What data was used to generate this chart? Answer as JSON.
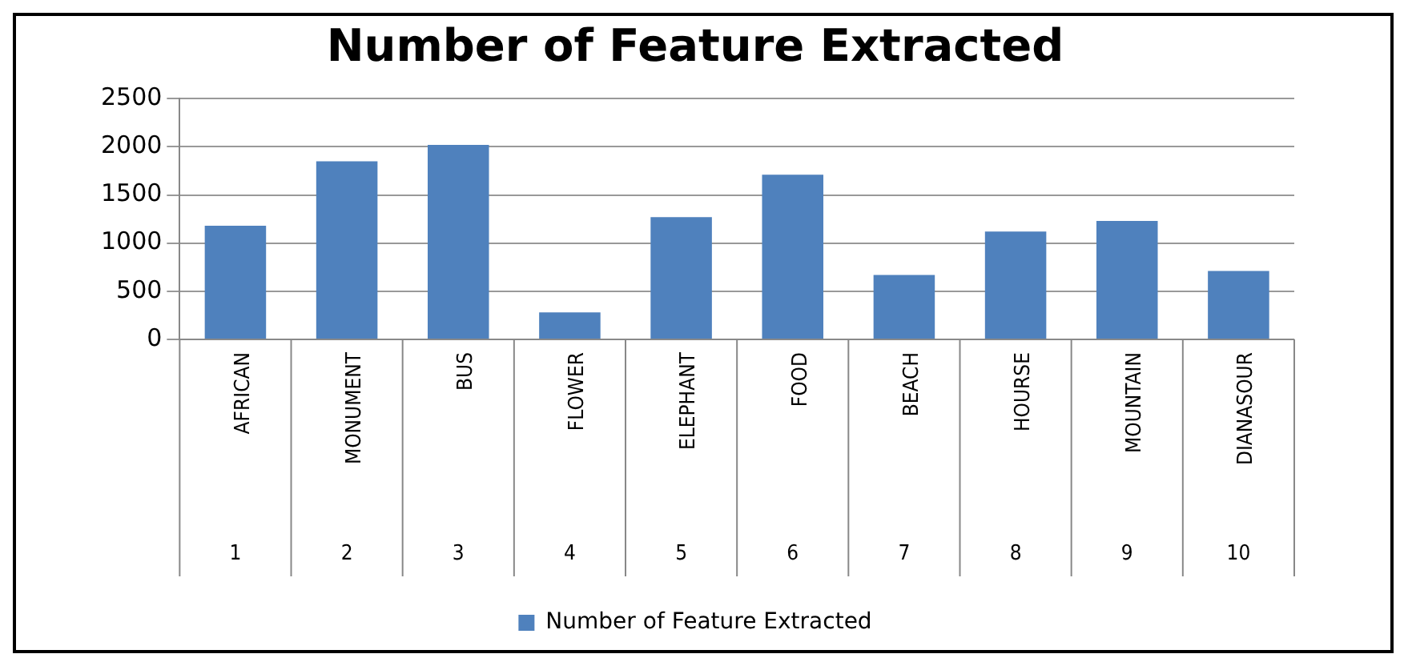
{
  "chart_data": {
    "type": "bar",
    "title": "Number of Feature Extracted",
    "categories": [
      "AFRICAN\n1",
      "MONUMENT\n2",
      "BUS\n3",
      "FLOWER\n4",
      "ELEPHANT\n5",
      "FOOD\n6",
      "BEACH\n7",
      "HOURSE\n8",
      "MOUNTAIN\n9",
      "DIANASOUR\n10"
    ],
    "series": [
      {
        "name": "Number of Feature Extracted",
        "color": "#4f81bd",
        "values": [
          1180,
          1850,
          2020,
          280,
          1270,
          1710,
          670,
          1120,
          1230,
          710
        ]
      }
    ],
    "ylim": [
      0,
      2500
    ],
    "yticks": [
      0,
      500,
      1000,
      1500,
      2000,
      2500
    ],
    "grid": "y",
    "legend": "bottom"
  }
}
